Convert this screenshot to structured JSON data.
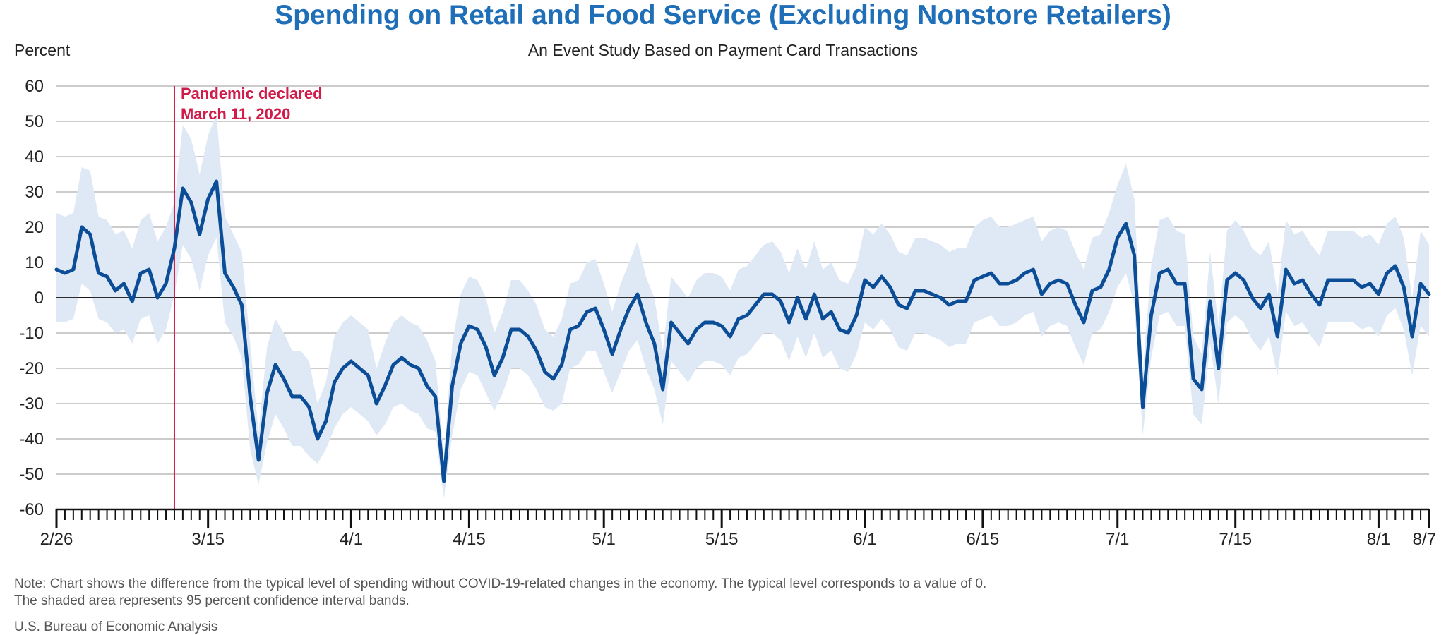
{
  "chart_data": {
    "type": "line",
    "title": "Spending on Retail and Food Service (Excluding Nonstore Retailers)",
    "subtitle": "An Event Study Based on Payment Card Transactions",
    "ylabel": "Percent",
    "ylim": [
      -60,
      60
    ],
    "yticks": [
      60,
      50,
      40,
      30,
      20,
      10,
      0,
      -10,
      -20,
      -30,
      -40,
      -50,
      -60
    ],
    "x_start": "2020-02-26",
    "x_end": "2020-08-07",
    "xtick_labels": [
      {
        "date": "2020-02-26",
        "label": "2/26"
      },
      {
        "date": "2020-03-15",
        "label": "3/15"
      },
      {
        "date": "2020-04-01",
        "label": "4/1"
      },
      {
        "date": "2020-04-15",
        "label": "4/15"
      },
      {
        "date": "2020-05-01",
        "label": "5/1"
      },
      {
        "date": "2020-05-15",
        "label": "5/15"
      },
      {
        "date": "2020-06-01",
        "label": "6/1"
      },
      {
        "date": "2020-06-15",
        "label": "6/15"
      },
      {
        "date": "2020-07-01",
        "label": "7/1"
      },
      {
        "date": "2020-07-15",
        "label": "7/15"
      },
      {
        "date": "2020-08-01",
        "label": "8/1"
      },
      {
        "date": "2020-08-07",
        "label": "8/7"
      }
    ],
    "grid": true,
    "annotation": {
      "date": "2020-03-11",
      "line1": "Pandemic declared",
      "line2": "March 11, 2020"
    },
    "series": [
      {
        "color": "#0b4d96",
        "values": [
          8,
          7,
          8,
          20,
          18,
          7,
          6,
          2,
          4,
          -1,
          7,
          8,
          0,
          4,
          14,
          31,
          27,
          18,
          28,
          33,
          7,
          3,
          -2,
          -28,
          -46,
          -27,
          -19,
          -23,
          -28,
          -28,
          -31,
          -40,
          -35,
          -24,
          -20,
          -18,
          -20,
          -22,
          -30,
          -25,
          -19,
          -17,
          -19,
          -20,
          -25,
          -28,
          -52,
          -25,
          -13,
          -8,
          -9,
          -14,
          -22,
          -17,
          -9,
          -9,
          -11,
          -15,
          -21,
          -23,
          -19,
          -9,
          -8,
          -4,
          -3,
          -9,
          -16,
          -9,
          -3,
          1,
          -7,
          -13,
          -26,
          -7,
          -10,
          -13,
          -9,
          -7,
          -7,
          -8,
          -11,
          -6,
          -5,
          -2,
          1,
          1,
          -1,
          -7,
          0,
          -6,
          1,
          -6,
          -4,
          -9,
          -10,
          -5,
          5,
          3,
          6,
          3,
          -2,
          -3,
          2,
          2,
          1,
          0,
          -2,
          -1,
          -1,
          5,
          6,
          7,
          4,
          4,
          5,
          7,
          8,
          1,
          4,
          5,
          4,
          -2,
          -7,
          2,
          3,
          8,
          17,
          21,
          12,
          -31,
          -5,
          7,
          8,
          4,
          4,
          -23,
          -26,
          -1,
          -20,
          5,
          7,
          5,
          0,
          -3,
          1,
          -11,
          8,
          4,
          5,
          1,
          -2,
          5,
          5,
          5,
          5,
          3,
          4,
          1,
          7,
          9,
          3,
          -11,
          4,
          1
        ],
        "lower": [
          -7,
          -7,
          -6,
          4,
          2,
          -6,
          -7,
          -10,
          -9,
          -13,
          -6,
          -5,
          -13,
          -9,
          1,
          15,
          11,
          2,
          12,
          17,
          -7,
          -11,
          -17,
          -43,
          -53,
          -41,
          -33,
          -37,
          -42,
          -42,
          -45,
          -47,
          -43,
          -37,
          -33,
          -31,
          -33,
          -35,
          -39,
          -36,
          -31,
          -30,
          -32,
          -33,
          -37,
          -38,
          -57,
          -39,
          -26,
          -21,
          -22,
          -27,
          -32,
          -27,
          -20,
          -20,
          -22,
          -26,
          -31,
          -32,
          -30,
          -20,
          -19,
          -15,
          -15,
          -21,
          -27,
          -21,
          -15,
          -12,
          -20,
          -26,
          -36,
          -18,
          -21,
          -24,
          -20,
          -18,
          -18,
          -19,
          -22,
          -17,
          -16,
          -13,
          -10,
          -10,
          -12,
          -18,
          -11,
          -17,
          -10,
          -17,
          -15,
          -20,
          -21,
          -16,
          -7,
          -9,
          -6,
          -9,
          -14,
          -15,
          -10,
          -10,
          -11,
          -12,
          -14,
          -13,
          -13,
          -7,
          -6,
          -5,
          -8,
          -8,
          -7,
          -5,
          -4,
          -11,
          -8,
          -7,
          -8,
          -14,
          -19,
          -10,
          -9,
          -4,
          3,
          7,
          -2,
          -39,
          -17,
          -5,
          -4,
          -8,
          -8,
          -33,
          -36,
          -13,
          -30,
          -7,
          -5,
          -7,
          -12,
          -15,
          -11,
          -22,
          -4,
          -8,
          -7,
          -11,
          -14,
          -7,
          -7,
          -7,
          -7,
          -9,
          -8,
          -11,
          -5,
          -3,
          -9,
          -22,
          -8,
          -11
        ],
        "upper": [
          24,
          23,
          24,
          37,
          36,
          23,
          22,
          18,
          19,
          14,
          22,
          24,
          16,
          20,
          27,
          49,
          45,
          35,
          46,
          52,
          23,
          18,
          13,
          -13,
          -38,
          -14,
          -6,
          -10,
          -15,
          -15,
          -18,
          -30,
          -24,
          -11,
          -7,
          -5,
          -7,
          -9,
          -20,
          -13,
          -7,
          -5,
          -7,
          -8,
          -12,
          -18,
          -45,
          -13,
          1,
          6,
          5,
          0,
          -10,
          -4,
          5,
          5,
          2,
          -2,
          -9,
          -11,
          -6,
          4,
          5,
          10,
          11,
          4,
          -4,
          4,
          10,
          16,
          6,
          0,
          -15,
          6,
          3,
          0,
          5,
          7,
          7,
          6,
          2,
          8,
          9,
          12,
          15,
          16,
          13,
          7,
          14,
          8,
          16,
          8,
          10,
          5,
          4,
          9,
          20,
          18,
          21,
          18,
          13,
          12,
          17,
          17,
          16,
          15,
          13,
          14,
          14,
          20,
          22,
          23,
          20,
          20,
          21,
          22,
          23,
          16,
          19,
          20,
          19,
          13,
          8,
          17,
          18,
          24,
          32,
          38,
          28,
          -21,
          9,
          22,
          23,
          19,
          18,
          -11,
          -16,
          13,
          -8,
          19,
          22,
          19,
          14,
          12,
          16,
          1,
          22,
          18,
          19,
          15,
          12,
          19,
          19,
          19,
          19,
          17,
          18,
          15,
          21,
          23,
          17,
          0,
          19,
          15
        ]
      }
    ]
  },
  "note_line1": "Note: Chart shows the difference from the typical level of spending without COVID-19-related changes in the economy. The typical level corresponds to a value of 0.",
  "note_line2": "The shaded area represents 95 percent confidence interval bands.",
  "source": "U.S. Bureau of Economic Analysis"
}
